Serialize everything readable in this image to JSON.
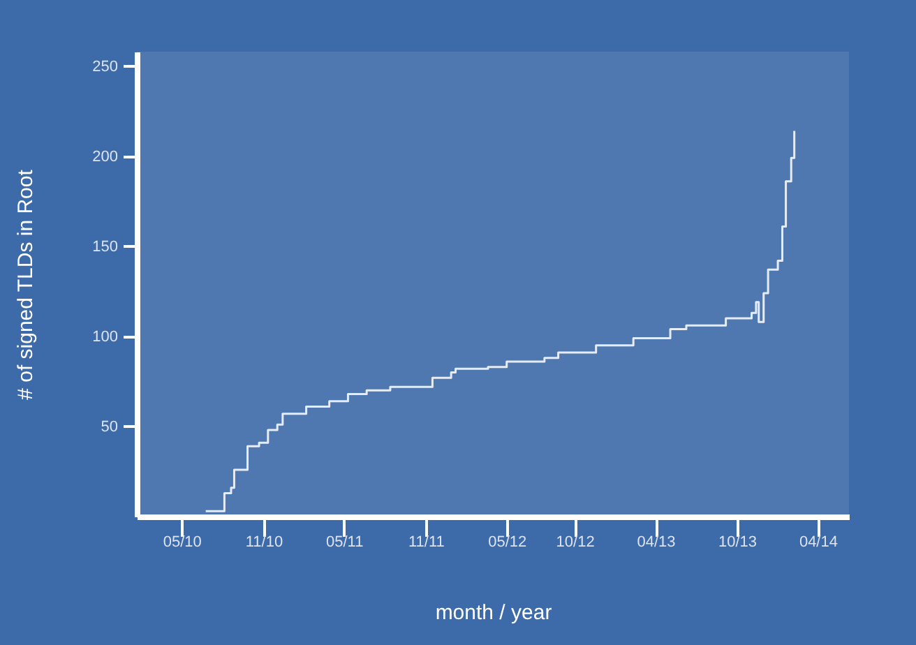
{
  "chart_data": {
    "type": "step",
    "xlabel": "month / year",
    "ylabel": "# of signed TLDs in Root",
    "x": [
      "2010-06-24",
      "2010-08-05",
      "2010-08-20",
      "2010-08-27",
      "2010-09-26",
      "2010-10-22",
      "2010-11-11",
      "2010-12-02",
      "2010-12-14",
      "2011-02-05",
      "2011-03-29",
      "2011-05-10",
      "2011-06-21",
      "2011-08-13",
      "2011-11-16",
      "2011-12-28",
      "2012-01-07",
      "2012-03-20",
      "2012-05-01",
      "2012-07-25",
      "2012-08-25",
      "2012-11-18",
      "2013-02-10",
      "2013-05-04",
      "2013-06-09",
      "2013-09-06",
      "2013-11-03",
      "2013-11-13",
      "2013-11-19",
      "2013-11-30",
      "2013-12-10",
      "2014-01-01",
      "2014-01-11",
      "2014-01-19",
      "2014-01-31",
      "2014-02-07"
    ],
    "series": [
      {
        "color": "#e6ecf5",
        "values": [
          3,
          13,
          16,
          26,
          39,
          41,
          48,
          51,
          57,
          61,
          64,
          68,
          70,
          72,
          77,
          80,
          82,
          83,
          86,
          88,
          91,
          95,
          99,
          104,
          106,
          110,
          113,
          119,
          108,
          124,
          137,
          142,
          161,
          186,
          199,
          214
        ]
      }
    ],
    "xlim": [
      "2010-01-20",
      "2014-06-10"
    ],
    "xticks": [
      {
        "value": "2010-05",
        "label": "05/10"
      },
      {
        "value": "2010-11",
        "label": "11/10"
      },
      {
        "value": "2011-05",
        "label": "05/11"
      },
      {
        "value": "2011-11",
        "label": "11/11"
      },
      {
        "value": "2012-05",
        "label": "05/12"
      },
      {
        "value": "2012-10",
        "label": "10/12"
      },
      {
        "value": "2013-04",
        "label": "04/13"
      },
      {
        "value": "2013-10",
        "label": "10/13"
      },
      {
        "value": "2014-04",
        "label": "04/14"
      }
    ],
    "ylim": [
      0,
      258
    ],
    "yticks": [
      50,
      100,
      150,
      200,
      250
    ],
    "grid": false,
    "marker": "none",
    "line_style": "solid"
  }
}
